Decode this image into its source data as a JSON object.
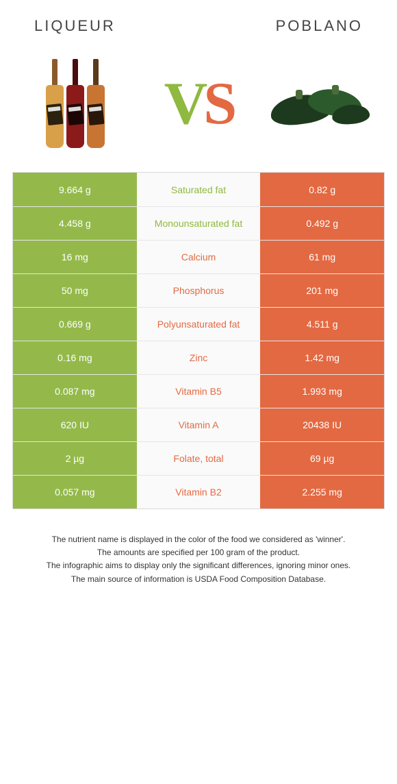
{
  "header": {
    "left_title": "Liqueur",
    "right_title": "Poblano"
  },
  "vs": {
    "v": "V",
    "s": "S"
  },
  "colors": {
    "left": "#94b94a",
    "right": "#e36942",
    "mid_bg": "#fafafa",
    "border": "#d9d9d9",
    "text_winner_left": "#8fb93f",
    "text_winner_right": "#e36942",
    "bottle1_body": "#d9a04a",
    "bottle1_neck": "#8b5a2b",
    "bottle2_body": "#8b1a1a",
    "bottle2_neck": "#4a0d0d",
    "bottle3_body": "#c87533",
    "bottle3_neck": "#5a3a1a",
    "poblano_dark": "#1e3a1e",
    "poblano_light": "#2d5a2d",
    "poblano_stem": "#4a6b3a"
  },
  "rows": [
    {
      "left": "9.664 g",
      "label": "Saturated fat",
      "right": "0.82 g",
      "winner": "left"
    },
    {
      "left": "4.458 g",
      "label": "Monounsaturated fat",
      "right": "0.492 g",
      "winner": "left"
    },
    {
      "left": "16 mg",
      "label": "Calcium",
      "right": "61 mg",
      "winner": "right"
    },
    {
      "left": "50 mg",
      "label": "Phosphorus",
      "right": "201 mg",
      "winner": "right"
    },
    {
      "left": "0.669 g",
      "label": "Polyunsaturated fat",
      "right": "4.511 g",
      "winner": "right"
    },
    {
      "left": "0.16 mg",
      "label": "Zinc",
      "right": "1.42 mg",
      "winner": "right"
    },
    {
      "left": "0.087 mg",
      "label": "Vitamin B5",
      "right": "1.993 mg",
      "winner": "right"
    },
    {
      "left": "620 IU",
      "label": "Vitamin A",
      "right": "20438 IU",
      "winner": "right"
    },
    {
      "left": "2 µg",
      "label": "Folate, total",
      "right": "69 µg",
      "winner": "right"
    },
    {
      "left": "0.057 mg",
      "label": "Vitamin B2",
      "right": "2.255 mg",
      "winner": "right"
    }
  ],
  "footer": {
    "l1": "The nutrient name is displayed in the color of the food we considered as 'winner'.",
    "l2": "The amounts are specified per 100 gram of the product.",
    "l3": "The infographic aims to display only the significant differences, ignoring minor ones.",
    "l4": "The main source of information is USDA Food Composition Database."
  }
}
